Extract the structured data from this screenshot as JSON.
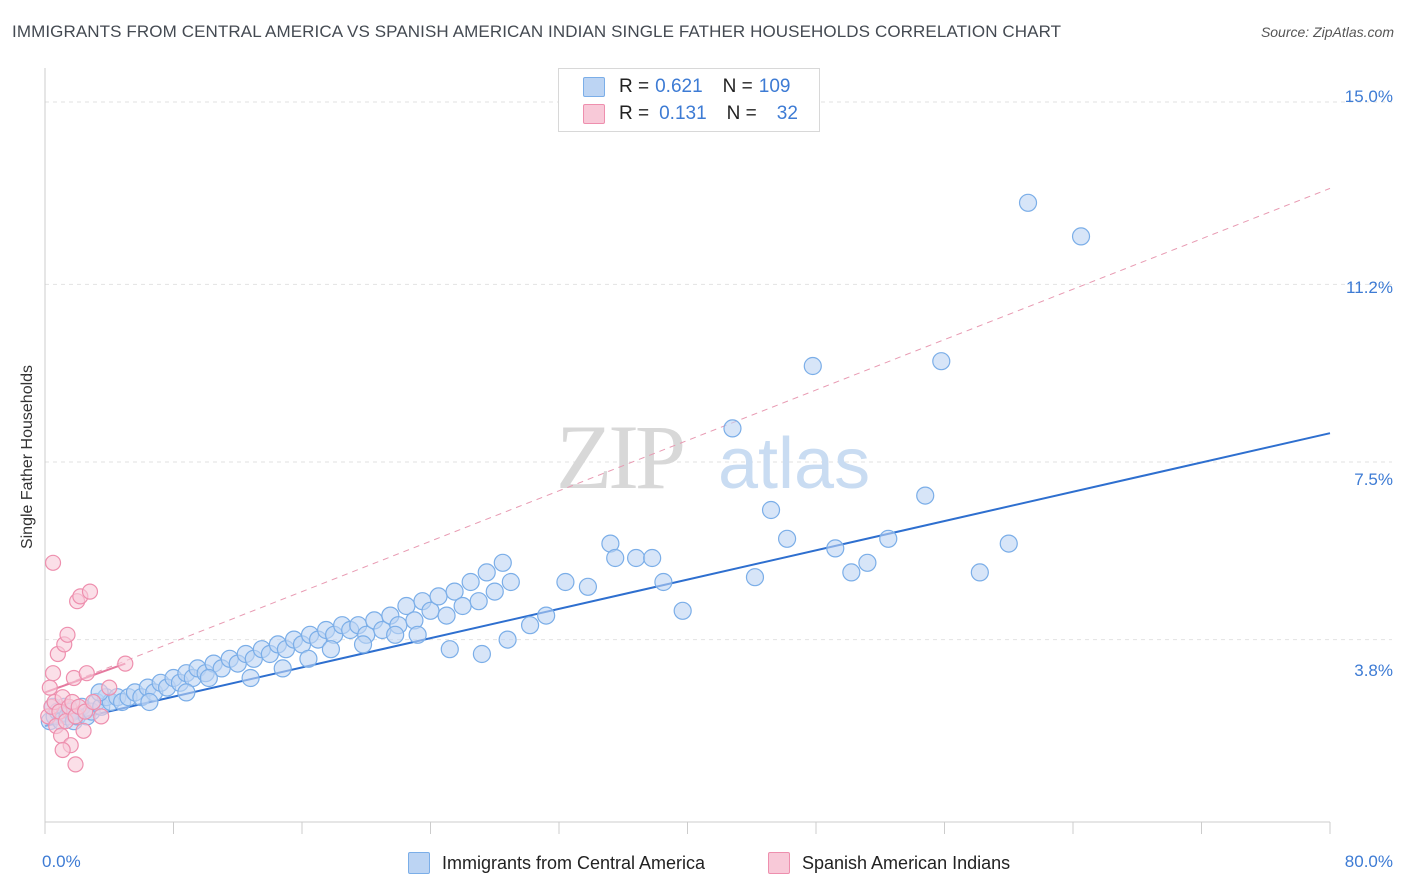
{
  "title": "IMMIGRANTS FROM CENTRAL AMERICA VS SPANISH AMERICAN INDIAN SINGLE FATHER HOUSEHOLDS CORRELATION CHART",
  "source": "Source: ZipAtlas.com",
  "watermark": {
    "zip": "ZIP",
    "atlas": "atlas"
  },
  "legend": {
    "rows": [
      {
        "r_label": "R = ",
        "r_value": "0.621",
        "n_label": "N = ",
        "n_value": "109",
        "color": "#a9c8f0"
      },
      {
        "r_label": "R = ",
        "r_value": "0.131",
        "n_label": "N = ",
        "n_value": "32",
        "color": "#f5b8cb"
      }
    ]
  },
  "chart_data": {
    "type": "scatter",
    "title": "IMMIGRANTS FROM CENTRAL AMERICA VS SPANISH AMERICAN INDIAN SINGLE FATHER HOUSEHOLDS CORRELATION CHART",
    "xlabel": "",
    "ylabel": "Single Father Households",
    "xlim": [
      0,
      80
    ],
    "ylim": [
      0,
      15.5
    ],
    "x_tick_labels": [
      "0.0%",
      "80.0%"
    ],
    "y_ticks": [
      3.8,
      7.5,
      11.2,
      15.0
    ],
    "y_tick_labels": [
      "3.8%",
      "7.5%",
      "11.2%",
      "15.0%"
    ],
    "grid": true,
    "series": [
      {
        "name": "Immigrants from Central America",
        "color": "#7baee8",
        "fill": "#bcd4f3",
        "trend": {
          "x": [
            0,
            80
          ],
          "y": [
            2.0,
            8.1
          ],
          "style": "solid",
          "color": "#2e6fcf"
        },
        "points": [
          [
            0.3,
            2.1
          ],
          [
            0.5,
            2.4
          ],
          [
            0.6,
            2.2
          ],
          [
            0.8,
            2.3
          ],
          [
            1.0,
            2.1
          ],
          [
            1.2,
            2.4
          ],
          [
            1.4,
            2.2
          ],
          [
            1.6,
            2.3
          ],
          [
            1.8,
            2.1
          ],
          [
            2.0,
            2.2
          ],
          [
            2.3,
            2.4
          ],
          [
            2.6,
            2.2
          ],
          [
            2.9,
            2.3
          ],
          [
            3.2,
            2.5
          ],
          [
            3.5,
            2.4
          ],
          [
            3.8,
            2.6
          ],
          [
            4.1,
            2.5
          ],
          [
            4.5,
            2.6
          ],
          [
            4.8,
            2.5
          ],
          [
            5.2,
            2.6
          ],
          [
            5.6,
            2.7
          ],
          [
            6.0,
            2.6
          ],
          [
            6.4,
            2.8
          ],
          [
            6.8,
            2.7
          ],
          [
            7.2,
            2.9
          ],
          [
            7.6,
            2.8
          ],
          [
            8.0,
            3.0
          ],
          [
            8.4,
            2.9
          ],
          [
            8.8,
            3.1
          ],
          [
            9.2,
            3.0
          ],
          [
            9.5,
            3.2
          ],
          [
            10.0,
            3.1
          ],
          [
            10.5,
            3.3
          ],
          [
            11.0,
            3.2
          ],
          [
            11.5,
            3.4
          ],
          [
            12.0,
            3.3
          ],
          [
            12.5,
            3.5
          ],
          [
            13.0,
            3.4
          ],
          [
            13.5,
            3.6
          ],
          [
            14.0,
            3.5
          ],
          [
            14.5,
            3.7
          ],
          [
            15.0,
            3.6
          ],
          [
            15.5,
            3.8
          ],
          [
            16.0,
            3.7
          ],
          [
            16.5,
            3.9
          ],
          [
            17.0,
            3.8
          ],
          [
            17.5,
            4.0
          ],
          [
            18.0,
            3.9
          ],
          [
            18.5,
            4.1
          ],
          [
            19.0,
            4.0
          ],
          [
            19.5,
            4.1
          ],
          [
            20.0,
            3.9
          ],
          [
            20.5,
            4.2
          ],
          [
            21.0,
            4.0
          ],
          [
            21.5,
            4.3
          ],
          [
            22.0,
            4.1
          ],
          [
            22.5,
            4.5
          ],
          [
            23.0,
            4.2
          ],
          [
            23.5,
            4.6
          ],
          [
            24.0,
            4.4
          ],
          [
            24.5,
            4.7
          ],
          [
            25.0,
            4.3
          ],
          [
            25.5,
            4.8
          ],
          [
            26.0,
            4.5
          ],
          [
            26.5,
            5.0
          ],
          [
            27.0,
            4.6
          ],
          [
            27.5,
            5.2
          ],
          [
            28.0,
            4.8
          ],
          [
            28.5,
            5.4
          ],
          [
            29.0,
            5.0
          ],
          [
            3.4,
            2.7
          ],
          [
            6.5,
            2.5
          ],
          [
            8.8,
            2.7
          ],
          [
            10.2,
            3.0
          ],
          [
            12.8,
            3.0
          ],
          [
            14.8,
            3.2
          ],
          [
            16.4,
            3.4
          ],
          [
            17.8,
            3.6
          ],
          [
            19.8,
            3.7
          ],
          [
            21.8,
            3.9
          ],
          [
            23.2,
            3.9
          ],
          [
            25.2,
            3.6
          ],
          [
            27.2,
            3.5
          ],
          [
            28.8,
            3.8
          ],
          [
            30.2,
            4.1
          ],
          [
            31.2,
            4.3
          ],
          [
            32.4,
            5.0
          ],
          [
            33.8,
            4.9
          ],
          [
            35.2,
            5.8
          ],
          [
            35.5,
            5.5
          ],
          [
            36.8,
            5.5
          ],
          [
            37.8,
            5.5
          ],
          [
            38.5,
            5.0
          ],
          [
            39.7,
            4.4
          ],
          [
            42.8,
            8.2
          ],
          [
            44.2,
            5.1
          ],
          [
            45.2,
            6.5
          ],
          [
            46.2,
            5.9
          ],
          [
            47.8,
            9.5
          ],
          [
            49.2,
            5.7
          ],
          [
            50.2,
            5.2
          ],
          [
            51.2,
            5.4
          ],
          [
            52.5,
            5.9
          ],
          [
            54.8,
            6.8
          ],
          [
            55.8,
            9.6
          ],
          [
            58.2,
            5.2
          ],
          [
            60.0,
            5.8
          ],
          [
            61.2,
            12.9
          ],
          [
            64.5,
            12.2
          ]
        ]
      },
      {
        "name": "Spanish American Indians",
        "color": "#ee8fae",
        "fill": "#f8c9d8",
        "trend": {
          "x": [
            0,
            5.0
          ],
          "y": [
            2.7,
            3.3
          ],
          "style": "solid",
          "color": "#e5799f"
        },
        "trend_ext": {
          "x": [
            0,
            80
          ],
          "y": [
            2.7,
            13.2
          ],
          "style": "dashed",
          "color": "#e89ab2"
        },
        "points": [
          [
            0.2,
            2.2
          ],
          [
            0.3,
            2.8
          ],
          [
            0.4,
            2.4
          ],
          [
            0.5,
            3.1
          ],
          [
            0.6,
            2.5
          ],
          [
            0.7,
            2.0
          ],
          [
            0.8,
            3.5
          ],
          [
            0.9,
            2.3
          ],
          [
            1.0,
            1.8
          ],
          [
            1.1,
            2.6
          ],
          [
            1.2,
            3.7
          ],
          [
            1.3,
            2.1
          ],
          [
            1.4,
            3.9
          ],
          [
            1.5,
            2.4
          ],
          [
            1.6,
            1.6
          ],
          [
            1.7,
            2.5
          ],
          [
            1.8,
            3.0
          ],
          [
            1.9,
            2.2
          ],
          [
            2.0,
            4.6
          ],
          [
            2.1,
            2.4
          ],
          [
            2.2,
            4.7
          ],
          [
            2.4,
            1.9
          ],
          [
            2.5,
            2.3
          ],
          [
            2.6,
            3.1
          ],
          [
            2.8,
            4.8
          ],
          [
            3.0,
            2.5
          ],
          [
            0.5,
            5.4
          ],
          [
            1.1,
            1.5
          ],
          [
            1.9,
            1.2
          ],
          [
            3.5,
            2.2
          ],
          [
            4.0,
            2.8
          ],
          [
            5.0,
            3.3
          ]
        ]
      }
    ]
  },
  "bottom_legend": [
    {
      "label": "Immigrants from Central America",
      "color": "#a9c8f0"
    },
    {
      "label": "Spanish American Indians",
      "color": "#f5b8cb"
    }
  ]
}
